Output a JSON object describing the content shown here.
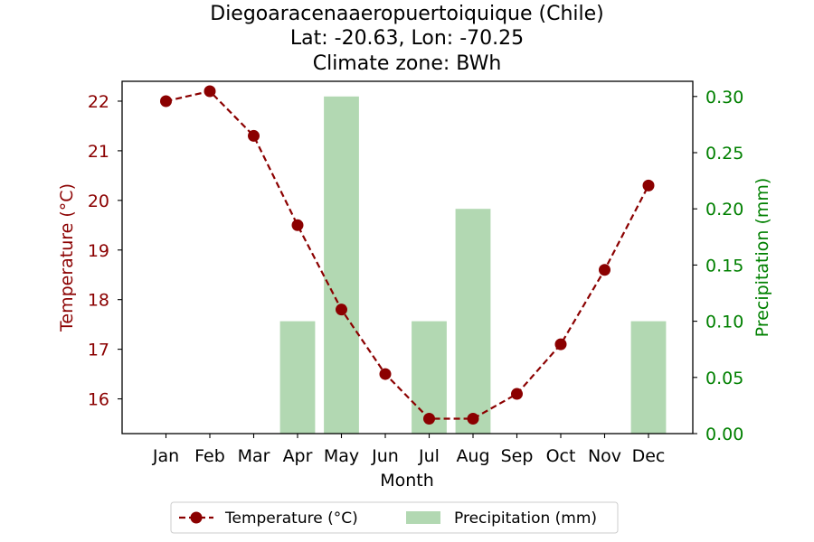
{
  "chart_data": {
    "type": "line+bar",
    "title_lines": [
      "Diegoaracenaaeropuertoiquique (Chile)",
      "Lat: -20.63, Lon: -70.25",
      "Climate zone: BWh"
    ],
    "xlabel": "Month",
    "categories": [
      "Jan",
      "Feb",
      "Mar",
      "Apr",
      "May",
      "Jun",
      "Jul",
      "Aug",
      "Sep",
      "Oct",
      "Nov",
      "Dec"
    ],
    "temperature": {
      "name": "Temperature (°C)",
      "axis_label": "Temperature (°C)",
      "values": [
        22.0,
        22.2,
        21.3,
        19.5,
        17.8,
        16.5,
        15.6,
        15.6,
        16.1,
        17.1,
        18.6,
        20.3
      ],
      "ylim": [
        15.3,
        22.4
      ],
      "ticks": [
        16,
        17,
        18,
        19,
        20,
        21,
        22
      ],
      "color": "#8b0000",
      "line_style": "dashed",
      "marker": "circle"
    },
    "precipitation": {
      "name": "Precipitation (mm)",
      "axis_label": "Precipitation (mm)",
      "values": [
        0,
        0,
        0,
        0.1,
        0.3,
        0,
        0.1,
        0.2,
        0,
        0,
        0,
        0.1
      ],
      "ylim": [
        0,
        0.3135
      ],
      "ticks": [
        "0.00",
        "0.05",
        "0.10",
        "0.15",
        "0.20",
        "0.25",
        "0.30"
      ],
      "color": "#b2d8b2",
      "axis_color": "#008000"
    },
    "legend": {
      "placement": "bottom-center",
      "entries": [
        "Temperature (°C)",
        "Precipitation (mm)"
      ]
    },
    "grid": false
  }
}
